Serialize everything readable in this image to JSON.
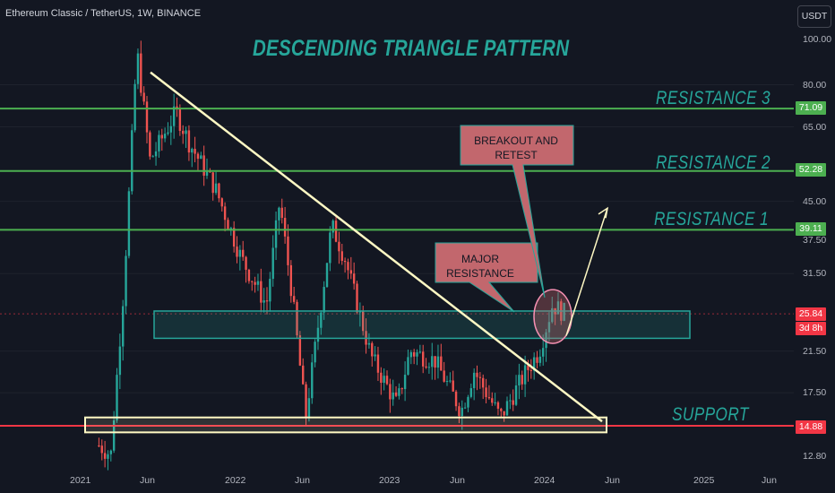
{
  "header": {
    "symbol": "Ethereum Classic / TetherUS, 1W, BINANCE",
    "currency": "USDT"
  },
  "annotations": {
    "title": "DESCENDING TRIANGLE PATTERN",
    "resistance_3": "RESISTANCE 3",
    "resistance_2": "RESISTANCE 2",
    "resistance_1": "RESISTANCE 1",
    "support": "SUPPORT",
    "callout_major": "MAJOR RESISTANCE",
    "callout_breakout": "BREAKOUT AND RETEST"
  },
  "price_axis": {
    "ticks": [
      "100.00",
      "80.00",
      "65.00",
      "45.00",
      "37.50",
      "31.50",
      "21.50",
      "17.50",
      "12.80"
    ],
    "tags": [
      {
        "value": "71.09",
        "color": "#4caf50"
      },
      {
        "value": "52.28",
        "color": "#4caf50"
      },
      {
        "value": "39.11",
        "color": "#4caf50"
      },
      {
        "value": "25.84",
        "color": "#f23645"
      },
      {
        "value": "3d 8h",
        "color": "#f23645"
      },
      {
        "value": "14.88",
        "color": "#f23645"
      }
    ]
  },
  "time_axis": {
    "ticks": [
      "2021",
      "Jun",
      "2022",
      "Jun",
      "2023",
      "Jun",
      "2024",
      "Jun",
      "2025",
      "Jun"
    ]
  },
  "colors": {
    "background": "#131722",
    "up": "#26a69a",
    "down": "#ef5350",
    "resistance_line": "#4caf50",
    "support_line": "#f23645",
    "trendline": "#fff9c4",
    "annotation_text": "#26a69a",
    "callout_fill": "#c2676d"
  },
  "chart_data": {
    "type": "candlestick",
    "title": "DESCENDING TRIANGLE PATTERN",
    "symbol": "Ethereum Classic / TetherUS",
    "interval": "1W",
    "exchange": "BINANCE",
    "y_scale": "log",
    "ylim": [
      12.0,
      115.0
    ],
    "xlim": [
      "2021-01",
      "2025-08"
    ],
    "current_price": 25.84,
    "levels": [
      {
        "name": "RESISTANCE 3",
        "value": 71.09
      },
      {
        "name": "RESISTANCE 2",
        "value": 52.28
      },
      {
        "name": "RESISTANCE 1",
        "value": 39.11
      },
      {
        "name": "SUPPORT",
        "value": 14.88
      }
    ],
    "weekly_closes_approx": [
      {
        "date": "2021-02",
        "value": 13.5
      },
      {
        "date": "2021-03",
        "value": 12.9
      },
      {
        "date": "2021-04",
        "value": 30.0
      },
      {
        "date": "2021-05",
        "value": 95.0
      },
      {
        "date": "2021-06",
        "value": 55.0
      },
      {
        "date": "2021-08",
        "value": 70.0
      },
      {
        "date": "2021-09",
        "value": 60.0
      },
      {
        "date": "2021-11",
        "value": 48.0
      },
      {
        "date": "2022-01",
        "value": 34.0
      },
      {
        "date": "2022-03",
        "value": 27.0
      },
      {
        "date": "2022-04",
        "value": 45.0
      },
      {
        "date": "2022-05",
        "value": 28.0
      },
      {
        "date": "2022-06",
        "value": 15.5
      },
      {
        "date": "2022-08",
        "value": 40.0
      },
      {
        "date": "2022-09",
        "value": 34.0
      },
      {
        "date": "2022-11",
        "value": 21.0
      },
      {
        "date": "2023-01",
        "value": 16.5
      },
      {
        "date": "2023-02",
        "value": 21.5
      },
      {
        "date": "2023-04",
        "value": 20.5
      },
      {
        "date": "2023-06",
        "value": 16.0
      },
      {
        "date": "2023-07",
        "value": 19.5
      },
      {
        "date": "2023-09",
        "value": 15.5
      },
      {
        "date": "2023-11",
        "value": 19.5
      },
      {
        "date": "2023-12",
        "value": 21.5
      },
      {
        "date": "2024-01",
        "value": 27.0
      },
      {
        "date": "2024-02",
        "value": 25.84
      }
    ]
  }
}
